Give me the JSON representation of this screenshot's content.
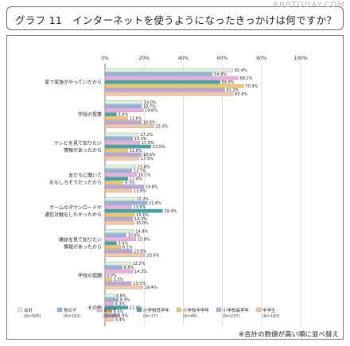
{
  "header": {
    "title": "グラフ 11　インターネットを使うようになったきっかけは何ですか？",
    "watermark": "RBBTODAY.COM"
  },
  "footnote": "※合計の数値が高い順に並べ替え",
  "chart_data": {
    "type": "bar",
    "orientation": "horizontal",
    "title": "",
    "xlabel": "",
    "ylabel": "",
    "xlim": [
      0,
      100
    ],
    "x_ticks": [
      "0%",
      "20%",
      "40%",
      "60%",
      "80%",
      "100%"
    ],
    "grid": true,
    "legend_position": "bottom",
    "categories": [
      [
        "家で家族がやっていたから"
      ],
      [
        "学校の授業"
      ],
      [
        "テレビを見て知りたい",
        "情報があったから"
      ],
      [
        "友だちに聞いて",
        "おもしろそうだったから"
      ],
      [
        "ゲームのダウンロードや",
        "通信対戦をしたかったから"
      ],
      [
        "雑誌を見て知りたい",
        "情報があったから"
      ],
      [
        "学校の宿題"
      ],
      [
        "その他"
      ]
    ],
    "series": [
      {
        "name": "合計",
        "n": "(N=500)",
        "color": "#d9f2d9",
        "values": [
          65.4,
          19.0,
          17.2,
          15.8,
          15.2,
          14.8,
          13.2,
          4.8
        ]
      },
      {
        "name": "男の子",
        "n": "(N=102)",
        "color": "#8fb4e0",
        "values": [
          54.9,
          18.7,
          14.1,
          13.7,
          21.6,
          10.8,
          8.8,
          6.9
        ]
      },
      {
        "name": "女の子",
        "n": "(N=398)",
        "color": "#f4aadd",
        "values": [
          68.1,
          19.6,
          17.8,
          16.1,
          13.6,
          15.8,
          14.3,
          4.3
        ]
      },
      {
        "name": "小学校低学年",
        "n": "(N=17)",
        "color": "#3aa8a8",
        "values": [
          58.8,
          5.9,
          23.5,
          11.8,
          29.4,
          5.9,
          0.0,
          11.8
        ]
      },
      {
        "name": "小学校中学年",
        "n": "(N=86)",
        "color": "#f0c860",
        "values": [
          70.9,
          11.6,
          11.6,
          9.3,
          15.1,
          8.1,
          3.5,
          3.5
        ]
      },
      {
        "name": "小学校高学年",
        "n": "(N=237)",
        "color": "#b8a6dc",
        "values": [
          61.2,
          18.6,
          18.6,
          19.8,
          14.3,
          13.9,
          13.5,
          5.9
        ]
      },
      {
        "name": "中学生",
        "n": "(N=160)",
        "color": "#f7c7a0",
        "values": [
          65.6,
          25.0,
          17.5,
          13.8,
          15.0,
          20.6,
          19.4,
          4.4
        ]
      }
    ]
  }
}
